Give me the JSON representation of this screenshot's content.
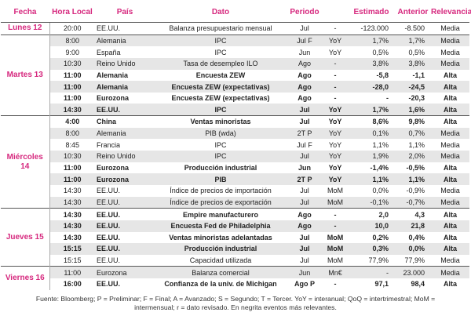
{
  "headers": [
    "Fecha",
    "Hora Local",
    "País",
    "Dato",
    "Periodo",
    "",
    "Estimado",
    "Anterior",
    "Relevancia"
  ],
  "groups": [
    {
      "date": "Lunes 12",
      "rows": [
        {
          "bold": false,
          "cells": [
            "20:00",
            "EE.UU.",
            "Balanza presupuestario mensual",
            "Jul",
            "-",
            "-123.000",
            "-8.500",
            "Media"
          ]
        }
      ]
    },
    {
      "date": "Martes 13",
      "rows": [
        {
          "bold": false,
          "cells": [
            "8:00",
            "Alemania",
            "IPC",
            "Jul F",
            "YoY",
            "1,7%",
            "1,7%",
            "Media"
          ]
        },
        {
          "bold": false,
          "cells": [
            "9:00",
            "España",
            "IPC",
            "Jun",
            "YoY",
            "0,5%",
            "0,5%",
            "Media"
          ]
        },
        {
          "bold": false,
          "cells": [
            "10:30",
            "Reino Unido",
            "Tasa de desempleo ILO",
            "Ago",
            "-",
            "3,8%",
            "3,8%",
            "Media"
          ]
        },
        {
          "bold": true,
          "cells": [
            "11:00",
            "Alemania",
            "Encuesta ZEW",
            "Ago",
            "-",
            "-5,8",
            "-1,1",
            "Alta"
          ]
        },
        {
          "bold": true,
          "cells": [
            "11:00",
            "Alemania",
            "Encuesta ZEW  (expectativas)",
            "Ago",
            "-",
            "-28,0",
            "-24,5",
            "Alta"
          ]
        },
        {
          "bold": true,
          "cells": [
            "11:00",
            "Eurozona",
            "Encuesta ZEW  (expectativas)",
            "Ago",
            "-",
            "-",
            "-20,3",
            "Alta"
          ]
        },
        {
          "bold": true,
          "cells": [
            "14:30",
            "EE.UU.",
            "IPC",
            "Jul",
            "YoY",
            "1,7%",
            "1,6%",
            "Alta"
          ]
        }
      ]
    },
    {
      "date": "Miércoles 14",
      "rows": [
        {
          "bold": true,
          "cells": [
            "4:00",
            "China",
            "Ventas minoristas",
            "Jul",
            "YoY",
            "8,6%",
            "9,8%",
            "Alta"
          ]
        },
        {
          "bold": false,
          "cells": [
            "8:00",
            "Alemania",
            "PIB (wda)",
            "2T P",
            "YoY",
            "0,1%",
            "0,7%",
            "Media"
          ]
        },
        {
          "bold": false,
          "cells": [
            "8:45",
            "Francia",
            "IPC",
            "Jul F",
            "YoY",
            "1,1%",
            "1,1%",
            "Media"
          ]
        },
        {
          "bold": false,
          "cells": [
            "10:30",
            "Reino Unido",
            "IPC",
            "Jul",
            "YoY",
            "1,9%",
            "2,0%",
            "Media"
          ]
        },
        {
          "bold": true,
          "cells": [
            "11:00",
            "Eurozona",
            "Producción industrial",
            "Jun",
            "YoY",
            "-1,4%",
            "-0,5%",
            "Alta"
          ]
        },
        {
          "bold": true,
          "cells": [
            "11:00",
            "Eurozona",
            "PIB",
            "2T P",
            "YoY",
            "1,1%",
            "1,1%",
            "Alta"
          ]
        },
        {
          "bold": false,
          "cells": [
            "14:30",
            "EE.UU.",
            "Índice de precios de importación",
            "Jul",
            "MoM",
            "0,0%",
            "-0,9%",
            "Media"
          ]
        },
        {
          "bold": false,
          "cells": [
            "14:30",
            "EE.UU.",
            "Índice de precios de exportación",
            "Jul",
            "MoM",
            "-0,1%",
            "-0,7%",
            "Media"
          ]
        }
      ]
    },
    {
      "date": "Jueves 15",
      "rows": [
        {
          "bold": true,
          "cells": [
            "14:30",
            "EE.UU.",
            "Empire manufacturero",
            "Ago",
            "-",
            "2,0",
            "4,3",
            "Alta"
          ]
        },
        {
          "bold": true,
          "cells": [
            "14:30",
            "EE.UU.",
            "Encuesta Fed de Philadelphia",
            "Ago",
            "-",
            "10,0",
            "21,8",
            "Alta"
          ]
        },
        {
          "bold": true,
          "cells": [
            "14:30",
            "EE.UU.",
            "Ventas minoristas adelantadas",
            "Jul",
            "MoM",
            "0,2%",
            "0,4%",
            "Alta"
          ]
        },
        {
          "bold": true,
          "cells": [
            "15:15",
            "EE.UU.",
            "Producción industrial",
            "Jul",
            "MoM",
            "0,3%",
            "0,0%",
            "Alta"
          ]
        },
        {
          "bold": false,
          "cells": [
            "15:15",
            "EE.UU.",
            "Capacidad utilizada",
            "Jul",
            "MoM",
            "77,9%",
            "77,9%",
            "Media"
          ]
        }
      ]
    },
    {
      "date": "Viernes 16",
      "rows": [
        {
          "bold": false,
          "cells": [
            "11:00",
            "Eurozona",
            "Balanza comercial",
            "Jun",
            "Mn€",
            "-",
            "23.000",
            "Media"
          ]
        },
        {
          "bold": true,
          "cells": [
            "16:00",
            "EE.UU.",
            "Confianza de la univ. de Michigan",
            "Ago P",
            "-",
            "97,1",
            "98,4",
            "Alta"
          ]
        }
      ]
    }
  ],
  "footnote": {
    "line1": "Fuente: Bloomberg; P = Preliminar; F = Final; A = Avanzado; S = Segundo; T = Tercer.  YoY = interanual; QoQ = intertrimestral; MoM =",
    "line2": "intermensual; r = dato revisado. En negrita eventos más relevantes."
  }
}
